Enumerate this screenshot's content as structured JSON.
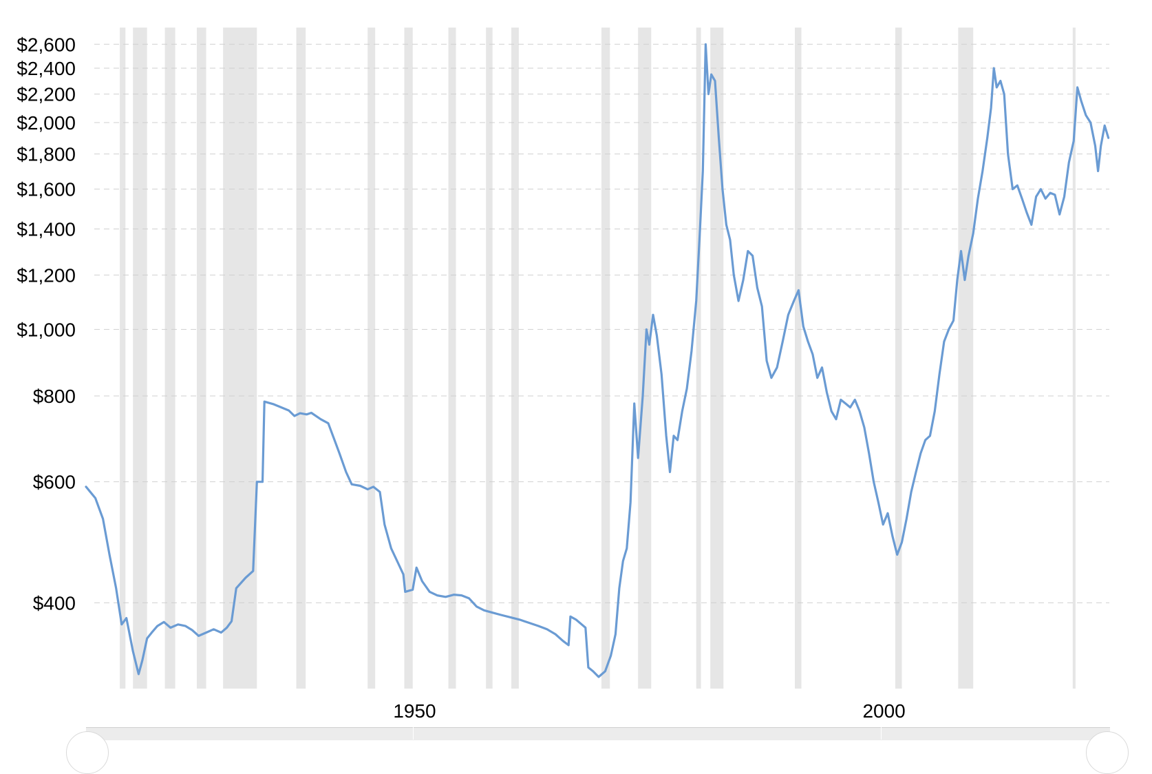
{
  "chart_data": {
    "type": "line",
    "title": "",
    "xlabel": "",
    "ylabel": "",
    "yscale": "log",
    "ylim": [
      300,
      2750
    ],
    "xlim": [
      1915,
      2024
    ],
    "grid": true,
    "y_ticks": [
      {
        "value": 2600,
        "label": "$2,600"
      },
      {
        "value": 2400,
        "label": "$2,400"
      },
      {
        "value": 2200,
        "label": "$2,200"
      },
      {
        "value": 2000,
        "label": "$2,000"
      },
      {
        "value": 1800,
        "label": "$1,800"
      },
      {
        "value": 1600,
        "label": "$1,600"
      },
      {
        "value": 1400,
        "label": "$1,400"
      },
      {
        "value": 1200,
        "label": "$1,200"
      },
      {
        "value": 1000,
        "label": "$1,000"
      },
      {
        "value": 800,
        "label": "$800"
      },
      {
        "value": 600,
        "label": "$600"
      },
      {
        "value": 400,
        "label": "$400"
      }
    ],
    "x_ticks": [
      {
        "value": 1950,
        "label": "1950"
      },
      {
        "value": 2000,
        "label": "2000"
      }
    ],
    "shaded_periods": [
      [
        1918.6,
        1919.2
      ],
      [
        1920.0,
        1921.5
      ],
      [
        1923.4,
        1924.5
      ],
      [
        1926.8,
        1927.8
      ],
      [
        1929.6,
        1933.2
      ],
      [
        1937.4,
        1938.4
      ],
      [
        1945.0,
        1945.8
      ],
      [
        1948.9,
        1949.8
      ],
      [
        1953.6,
        1954.4
      ],
      [
        1957.6,
        1958.3
      ],
      [
        1960.3,
        1961.1
      ],
      [
        1969.9,
        1970.8
      ],
      [
        1973.8,
        1975.2
      ],
      [
        1980.0,
        1980.5
      ],
      [
        1981.5,
        1982.9
      ],
      [
        1990.5,
        1991.2
      ],
      [
        2001.2,
        2001.9
      ],
      [
        2007.9,
        2009.5
      ],
      [
        2020.1,
        2020.4
      ]
    ],
    "series": [
      {
        "color": "#6a9bd3",
        "points": [
          [
            1915.0,
            590
          ],
          [
            1916.0,
            568
          ],
          [
            1916.8,
            530
          ],
          [
            1917.5,
            470
          ],
          [
            1918.2,
            420
          ],
          [
            1918.8,
            372
          ],
          [
            1919.3,
            380
          ],
          [
            1920.0,
            340
          ],
          [
            1920.6,
            315
          ],
          [
            1921.0,
            330
          ],
          [
            1921.5,
            355
          ],
          [
            1922.0,
            362
          ],
          [
            1922.6,
            370
          ],
          [
            1923.3,
            375
          ],
          [
            1924.0,
            368
          ],
          [
            1924.8,
            372
          ],
          [
            1925.6,
            370
          ],
          [
            1926.3,
            365
          ],
          [
            1927.0,
            358
          ],
          [
            1927.8,
            362
          ],
          [
            1928.6,
            366
          ],
          [
            1929.4,
            362
          ],
          [
            1930.0,
            368
          ],
          [
            1930.5,
            376
          ],
          [
            1931.0,
            420
          ],
          [
            1932.0,
            435
          ],
          [
            1932.8,
            445
          ],
          [
            1933.2,
            600
          ],
          [
            1933.8,
            600
          ],
          [
            1934.0,
            785
          ],
          [
            1935.0,
            778
          ],
          [
            1935.8,
            770
          ],
          [
            1936.6,
            762
          ],
          [
            1937.2,
            748
          ],
          [
            1937.8,
            755
          ],
          [
            1938.5,
            752
          ],
          [
            1939.0,
            756
          ],
          [
            1940.0,
            740
          ],
          [
            1940.8,
            730
          ],
          [
            1941.3,
            700
          ],
          [
            1942.0,
            660
          ],
          [
            1942.7,
            620
          ],
          [
            1943.3,
            595
          ],
          [
            1944.2,
            592
          ],
          [
            1945.0,
            585
          ],
          [
            1945.6,
            590
          ],
          [
            1946.3,
            580
          ],
          [
            1946.8,
            520
          ],
          [
            1947.5,
            480
          ],
          [
            1948.3,
            455
          ],
          [
            1948.8,
            440
          ],
          [
            1949.0,
            415
          ],
          [
            1949.8,
            418
          ],
          [
            1950.2,
            450
          ],
          [
            1950.8,
            430
          ],
          [
            1951.6,
            415
          ],
          [
            1952.4,
            410
          ],
          [
            1953.3,
            408
          ],
          [
            1954.2,
            411
          ],
          [
            1955.0,
            410
          ],
          [
            1955.8,
            406
          ],
          [
            1956.6,
            395
          ],
          [
            1957.4,
            390
          ],
          [
            1958.3,
            387
          ],
          [
            1959.2,
            384
          ],
          [
            1960.2,
            381
          ],
          [
            1961.2,
            378
          ],
          [
            1962.2,
            374
          ],
          [
            1963.2,
            370
          ],
          [
            1964.1,
            366
          ],
          [
            1965.0,
            360
          ],
          [
            1965.8,
            352
          ],
          [
            1966.4,
            347
          ],
          [
            1966.6,
            382
          ],
          [
            1967.2,
            378
          ],
          [
            1967.8,
            372
          ],
          [
            1968.2,
            368
          ],
          [
            1968.5,
            322
          ],
          [
            1969.0,
            318
          ],
          [
            1969.6,
            312
          ],
          [
            1970.3,
            318
          ],
          [
            1970.9,
            335
          ],
          [
            1971.4,
            360
          ],
          [
            1971.8,
            420
          ],
          [
            1972.2,
            460
          ],
          [
            1972.6,
            480
          ],
          [
            1973.0,
            560
          ],
          [
            1973.4,
            780
          ],
          [
            1973.8,
            650
          ],
          [
            1974.3,
            800
          ],
          [
            1974.7,
            1000
          ],
          [
            1975.0,
            950
          ],
          [
            1975.4,
            1050
          ],
          [
            1975.8,
            980
          ],
          [
            1976.3,
            860
          ],
          [
            1976.8,
            700
          ],
          [
            1977.2,
            620
          ],
          [
            1977.6,
            700
          ],
          [
            1978.0,
            690
          ],
          [
            1978.5,
            760
          ],
          [
            1979.0,
            820
          ],
          [
            1979.5,
            930
          ],
          [
            1980.0,
            1100
          ],
          [
            1980.4,
            1400
          ],
          [
            1980.7,
            1700
          ],
          [
            1981.0,
            2600
          ],
          [
            1981.3,
            2200
          ],
          [
            1981.6,
            2350
          ],
          [
            1982.0,
            2300
          ],
          [
            1982.4,
            1900
          ],
          [
            1982.8,
            1600
          ],
          [
            1983.2,
            1420
          ],
          [
            1983.6,
            1350
          ],
          [
            1984.0,
            1200
          ],
          [
            1984.5,
            1100
          ],
          [
            1985.0,
            1180
          ],
          [
            1985.5,
            1300
          ],
          [
            1986.0,
            1280
          ],
          [
            1986.5,
            1150
          ],
          [
            1987.0,
            1080
          ],
          [
            1987.5,
            900
          ],
          [
            1988.0,
            850
          ],
          [
            1988.6,
            880
          ],
          [
            1989.2,
            960
          ],
          [
            1989.8,
            1050
          ],
          [
            1990.4,
            1100
          ],
          [
            1990.9,
            1140
          ],
          [
            1991.4,
            1010
          ],
          [
            1991.9,
            960
          ],
          [
            1992.4,
            920
          ],
          [
            1992.9,
            850
          ],
          [
            1993.4,
            880
          ],
          [
            1993.9,
            810
          ],
          [
            1994.4,
            760
          ],
          [
            1994.9,
            740
          ],
          [
            1995.4,
            790
          ],
          [
            1995.9,
            780
          ],
          [
            1996.4,
            770
          ],
          [
            1996.9,
            790
          ],
          [
            1997.4,
            760
          ],
          [
            1997.9,
            720
          ],
          [
            1998.4,
            660
          ],
          [
            1998.9,
            600
          ],
          [
            1999.4,
            560
          ],
          [
            1999.9,
            520
          ],
          [
            2000.4,
            540
          ],
          [
            2000.9,
            500
          ],
          [
            2001.4,
            470
          ],
          [
            2001.9,
            490
          ],
          [
            2002.4,
            530
          ],
          [
            2002.9,
            580
          ],
          [
            2003.4,
            620
          ],
          [
            2003.9,
            660
          ],
          [
            2004.4,
            690
          ],
          [
            2004.9,
            700
          ],
          [
            2005.4,
            760
          ],
          [
            2005.9,
            860
          ],
          [
            2006.4,
            960
          ],
          [
            2006.9,
            1000
          ],
          [
            2007.4,
            1030
          ],
          [
            2007.8,
            1180
          ],
          [
            2008.2,
            1300
          ],
          [
            2008.6,
            1180
          ],
          [
            2009.0,
            1280
          ],
          [
            2009.5,
            1380
          ],
          [
            2010.0,
            1550
          ],
          [
            2010.5,
            1700
          ],
          [
            2011.0,
            1900
          ],
          [
            2011.4,
            2100
          ],
          [
            2011.7,
            2400
          ],
          [
            2012.0,
            2250
          ],
          [
            2012.4,
            2300
          ],
          [
            2012.8,
            2200
          ],
          [
            2013.2,
            1800
          ],
          [
            2013.7,
            1600
          ],
          [
            2014.2,
            1620
          ],
          [
            2014.7,
            1550
          ],
          [
            2015.2,
            1480
          ],
          [
            2015.7,
            1420
          ],
          [
            2016.2,
            1560
          ],
          [
            2016.7,
            1600
          ],
          [
            2017.2,
            1550
          ],
          [
            2017.7,
            1580
          ],
          [
            2018.2,
            1570
          ],
          [
            2018.7,
            1470
          ],
          [
            2019.2,
            1560
          ],
          [
            2019.7,
            1750
          ],
          [
            2020.2,
            1880
          ],
          [
            2020.6,
            2250
          ],
          [
            2021.0,
            2150
          ],
          [
            2021.5,
            2050
          ],
          [
            2022.0,
            2000
          ],
          [
            2022.5,
            1850
          ],
          [
            2022.8,
            1700
          ],
          [
            2023.1,
            1850
          ],
          [
            2023.5,
            1980
          ],
          [
            2023.9,
            1900
          ]
        ]
      }
    ]
  }
}
